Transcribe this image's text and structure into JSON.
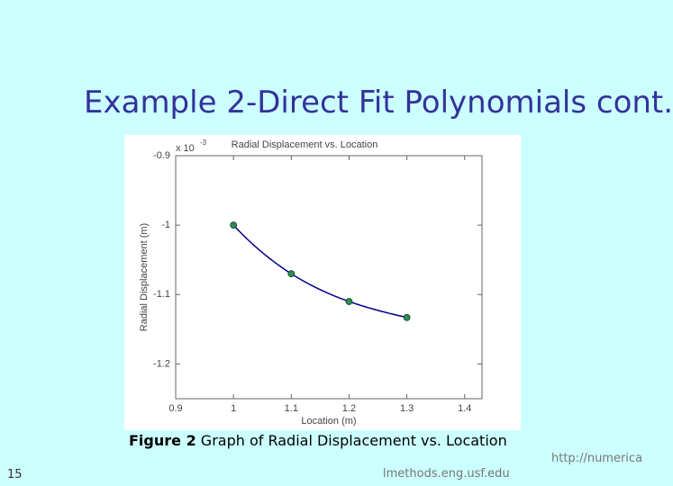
{
  "slide": {
    "title": "Example 2-Direct Fit Polynomials cont.",
    "caption_bold": "Figure 2",
    "caption_rest": "Graph of Radial Displacement vs. Location",
    "page_number": "15",
    "url_part_1": "http://numerica",
    "url_part_2": "lmethods.eng.usf.edu"
  },
  "chart_data": {
    "type": "scatter",
    "title": "Radial Displacement vs. Location",
    "x_label": "Location (m)",
    "y_label": "Radial Displacement (m)",
    "y_multiplier": "x 10",
    "y_multiplier_exponent": "-3",
    "x": [
      1,
      1.1,
      1.2,
      1.3
    ],
    "series": [
      {
        "color": "#2e8b57",
        "values": [
          -1.0,
          -1.07,
          -1.11,
          -1.133
        ]
      }
    ],
    "curve_color": "#00008b",
    "xlim": [
      0.9,
      1.43
    ],
    "xticks": [
      0.9,
      1,
      1.1,
      1.2,
      1.3,
      1.4
    ],
    "ylim": [
      -1.25,
      -0.9
    ],
    "yticks": [
      -0.9,
      -1,
      -1.1,
      -1.2
    ]
  }
}
